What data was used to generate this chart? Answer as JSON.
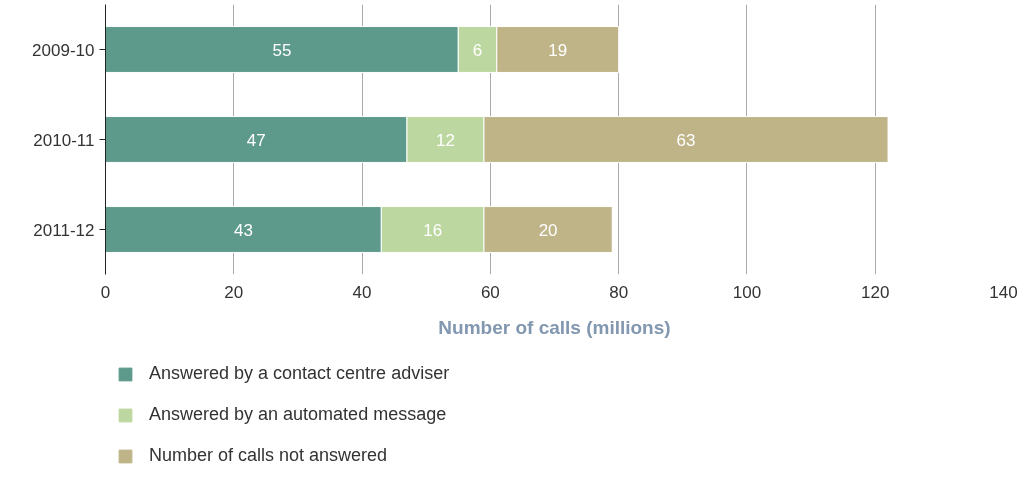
{
  "chart_data": {
    "type": "bar",
    "orientation": "horizontal",
    "stacked": true,
    "categories": [
      "2009-10",
      "2010-11",
      "2011-12"
    ],
    "series": [
      {
        "name": "Answered by a contact centre adviser",
        "color": "#5e9a8c",
        "values": [
          55,
          47,
          43
        ]
      },
      {
        "name": "Answered by an automated message",
        "color": "#bdd7a0",
        "values": [
          6,
          12,
          16
        ]
      },
      {
        "name": "Number of calls not answered",
        "color": "#bfb488",
        "values": [
          19,
          63,
          20
        ]
      }
    ],
    "xlabel": "Number of calls (millions)",
    "xlim": [
      0,
      140
    ],
    "xticks": [
      0,
      20,
      40,
      60,
      80,
      100,
      120,
      140
    ],
    "grid": "x",
    "legend": "bottom",
    "data_labels": true
  }
}
